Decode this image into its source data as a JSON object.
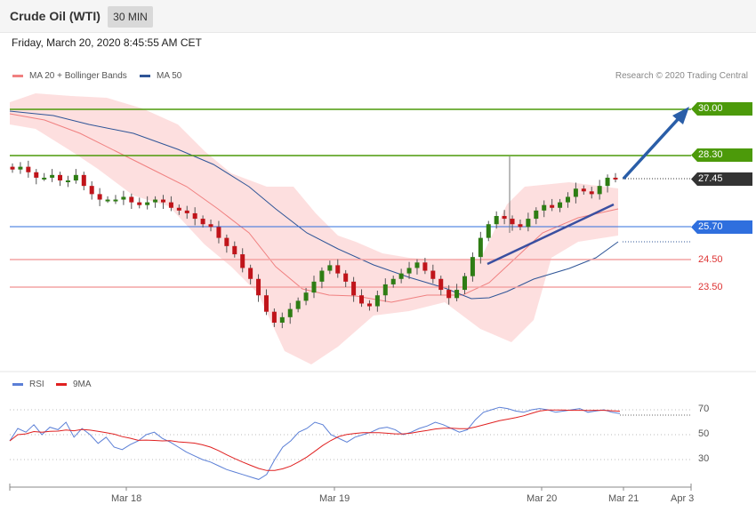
{
  "header": {
    "instrument": "Crude Oil (WTI)",
    "timeframe": "30 MIN"
  },
  "timestamp": "Friday, March 20, 2020 8:45:55 AM CET",
  "legend": {
    "ma20": {
      "label": "MA 20 + Bollinger Bands",
      "color": "#f08080"
    },
    "ma50": {
      "label": "MA 50",
      "color": "#2f5597"
    }
  },
  "credit": "Research © 2020 Trading Central",
  "levels": [
    {
      "value": "30.00",
      "kind": "resistance",
      "color": "#4c9a0a"
    },
    {
      "value": "28.30",
      "kind": "resistance",
      "color": "#4c9a0a"
    },
    {
      "value": "27.45",
      "kind": "last",
      "color": "#333333"
    },
    {
      "value": "25.70",
      "kind": "pivot",
      "color": "#2f6fde"
    },
    {
      "value": "24.50",
      "kind": "support",
      "color": "#d33333"
    },
    {
      "value": "23.50",
      "kind": "support",
      "color": "#d33333"
    }
  ],
  "rsi_legend": {
    "rsi": {
      "label": "RSI",
      "color": "#5b7fd6"
    },
    "ma9": {
      "label": "9MA",
      "color": "#e02020"
    }
  },
  "rsi_levels": [
    "70",
    "50",
    "30"
  ],
  "x_axis": [
    "Mar 18",
    "Mar 19",
    "Mar 20",
    "Mar 21",
    "Apr 3"
  ],
  "chart_data": {
    "type": "candlestick",
    "title": "Crude Oil (WTI)",
    "interval": "30 MIN",
    "price_lines": [
      30.0,
      28.3,
      25.7,
      24.5,
      23.5
    ],
    "last_price": 27.45,
    "rsi_levels": [
      70,
      50,
      30
    ],
    "close_series": [
      27.8,
      27.9,
      27.7,
      27.5,
      27.5,
      27.6,
      27.4,
      27.4,
      27.6,
      27.2,
      26.9,
      26.7,
      26.7,
      26.7,
      26.8,
      26.6,
      26.5,
      26.6,
      26.7,
      26.6,
      26.4,
      26.3,
      26.2,
      26.0,
      25.8,
      25.7,
      25.3,
      25.0,
      24.7,
      24.2,
      23.8,
      23.2,
      22.6,
      22.2,
      22.4,
      22.7,
      23.0,
      23.3,
      23.7,
      24.1,
      24.3,
      24.0,
      23.7,
      23.2,
      22.9,
      22.8,
      23.2,
      23.6,
      23.8,
      24.0,
      24.2,
      24.4,
      24.1,
      23.8,
      23.4,
      23.1,
      23.4,
      23.9,
      24.6,
      25.3,
      25.8,
      26.1,
      26.0,
      25.8,
      25.7,
      26.0,
      26.3,
      26.5,
      26.4,
      26.6,
      26.8,
      27.1,
      27.0,
      26.9,
      27.2,
      27.5,
      27.45
    ]
  }
}
